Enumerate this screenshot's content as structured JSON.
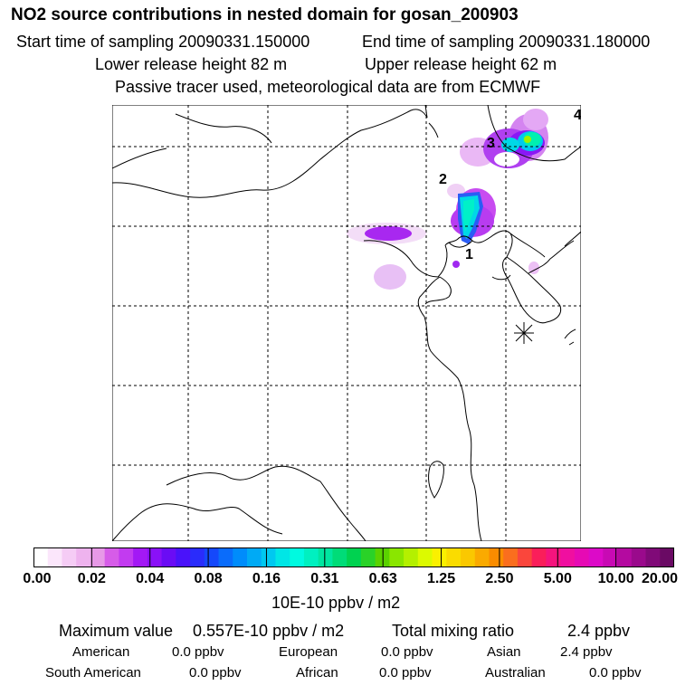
{
  "header": {
    "title": "NO2 source contributions in nested domain for gosan_200903",
    "start_time": "Start time of sampling 20090331.150000",
    "end_time": "End time of sampling 20090331.180000",
    "lower_height": "Lower release height   82 m",
    "upper_height": "Upper release height   62 m",
    "tracer_note": "Passive tracer used, meteorological data are from ECMWF"
  },
  "map": {
    "markers": [
      "1",
      "2",
      "3",
      "4"
    ],
    "station_symbol": "asterisk-icon"
  },
  "colorbar": {
    "colors": [
      "#ffffff",
      "#fbe6fb",
      "#f5ccf5",
      "#eeb3ee",
      "#e799e7",
      "#d65ce8",
      "#c23bf0",
      "#a319f5",
      "#8a11f7",
      "#6a0cf5",
      "#4a12fa",
      "#2a2cfb",
      "#1548fb",
      "#0a6cfb",
      "#008cfb",
      "#00aaf5",
      "#00c8f0",
      "#00e6e6",
      "#00fae0",
      "#00f0c0",
      "#00e6a0",
      "#00dc78",
      "#00d250",
      "#2ad228",
      "#5ad200",
      "#8ae600",
      "#b4f000",
      "#dcfa00",
      "#faf000",
      "#fadc00",
      "#fac800",
      "#faaa00",
      "#fa8c00",
      "#fa6e1e",
      "#fa463c",
      "#fa1e5a",
      "#f5147d",
      "#f00fa0",
      "#e60ab4",
      "#dc0ac8",
      "#c80ab4",
      "#b40aa0",
      "#9a0a8c",
      "#800a78",
      "#6a0a64"
    ],
    "ticks": [
      "0.00",
      "0.02",
      "0.04",
      "0.08",
      "0.16",
      "0.31",
      "0.63",
      "1.25",
      "2.50",
      "5.00",
      "10.00",
      "20.00"
    ],
    "units": "10E-10 ppbv / m2"
  },
  "summary": {
    "max_label": "Maximum value",
    "max_value": "0.557E-10 ppbv / m2",
    "total_label": "Total mixing ratio",
    "total_value": "2.4 ppbv",
    "regions": [
      {
        "name": "American",
        "value": "0.0 ppbv"
      },
      {
        "name": "European",
        "value": "0.0 ppbv"
      },
      {
        "name": "Asian",
        "value": "2.4 ppbv"
      },
      {
        "name": "South American",
        "value": "0.0 ppbv"
      },
      {
        "name": "African",
        "value": "0.0 ppbv"
      },
      {
        "name": "Australian",
        "value": "0.0 ppbv"
      }
    ]
  }
}
